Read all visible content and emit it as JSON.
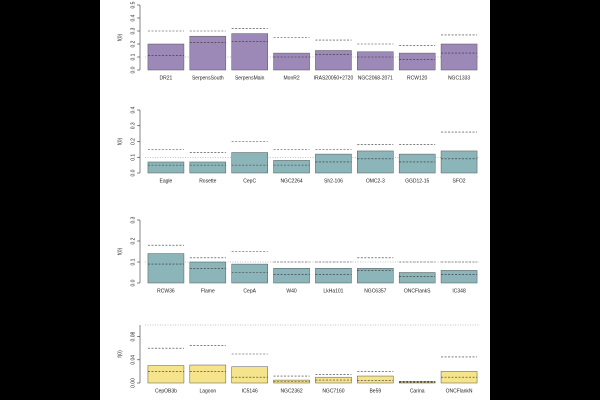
{
  "chart_data": [
    {
      "type": "bar",
      "y_label": "f(0)",
      "color": "#9c89b8",
      "categories": [
        "DR21",
        "SerpensSouth",
        "SerpensMain",
        "MonR2",
        "IRAS20050+2720",
        "NGC2068-2071",
        "RCW120",
        "NGC1333"
      ],
      "values": [
        0.2,
        0.26,
        0.28,
        0.13,
        0.15,
        0.14,
        0.13,
        0.2
      ],
      "upper": [
        0.3,
        0.3,
        0.32,
        0.25,
        0.23,
        0.2,
        0.19,
        0.27
      ],
      "lower": [
        0.11,
        0.21,
        0.22,
        0.1,
        0.12,
        0.1,
        0.08,
        0.13
      ],
      "reference": 0.1,
      "ylim": [
        0,
        0.5
      ],
      "yticks": [
        {
          "value": 0,
          "label": "0.0"
        },
        0.1,
        0.2,
        0.3,
        0.4,
        0.5
      ]
    },
    {
      "type": "bar",
      "y_label": "f(0)",
      "color": "#8bb5b8",
      "categories": [
        "Eagle",
        "Rosette",
        "CepC",
        "NGC2264",
        "Sh2-106",
        "OMC2-3",
        "GGD12-15",
        "SFO2"
      ],
      "values": [
        0.07,
        0.07,
        0.13,
        0.08,
        0.12,
        0.14,
        0.12,
        0.14
      ],
      "upper": [
        0.15,
        0.13,
        0.2,
        0.15,
        0.15,
        0.18,
        0.18,
        0.26
      ],
      "lower": [
        0.05,
        0.05,
        0.05,
        0.05,
        0.07,
        0.09,
        0.07,
        0.09
      ],
      "reference": 0.1,
      "ylim": [
        0,
        0.4
      ],
      "yticks": [
        {
          "value": 0,
          "label": "0.0"
        },
        0.1,
        0.2,
        0.3,
        0.4
      ]
    },
    {
      "type": "bar",
      "y_label": "f(0)",
      "color": "#8bb5b8",
      "categories": [
        "RCW36",
        "Flame",
        "CepA",
        "W40",
        "LkHa101",
        "NGC6357",
        "ONCFlankS",
        "IC348"
      ],
      "values": [
        0.14,
        0.1,
        0.09,
        0.07,
        0.07,
        0.07,
        0.05,
        0.06
      ],
      "upper": [
        0.18,
        0.12,
        0.15,
        0.1,
        0.1,
        0.12,
        0.1,
        0.1
      ],
      "lower": [
        0.09,
        0.07,
        0.05,
        0.04,
        0.04,
        0.06,
        0.03,
        0.04
      ],
      "reference": 0.1,
      "ylim": [
        0,
        0.3
      ],
      "yticks": [
        {
          "value": 0,
          "label": "0.0"
        },
        0.1,
        0.2,
        0.3
      ]
    },
    {
      "type": "bar",
      "y_label": "f(0)",
      "color": "#f6e48c",
      "categories": [
        "CepOB3b",
        "Lagoon",
        "IC5146",
        "NGC2362",
        "NGC7160",
        "Be59",
        "Carina",
        "ONCFlankN"
      ],
      "values": [
        0.03,
        0.031,
        0.028,
        0.005,
        0.01,
        0.012,
        0.002,
        0.02
      ],
      "upper": [
        0.06,
        0.065,
        0.05,
        0.012,
        0.015,
        0.02,
        0.003,
        0.045
      ],
      "lower": [
        0.02,
        0.02,
        0.01,
        0.003,
        0.005,
        0.004,
        0.001,
        0.01
      ],
      "reference": 0.1,
      "ylim": [
        0,
        0.1
      ],
      "yticks": [
        {
          "value": 0,
          "label": "0.00"
        },
        {
          "value": 0.04,
          "label": "0.04"
        },
        {
          "value": 0.08,
          "label": "0.08"
        }
      ]
    }
  ]
}
